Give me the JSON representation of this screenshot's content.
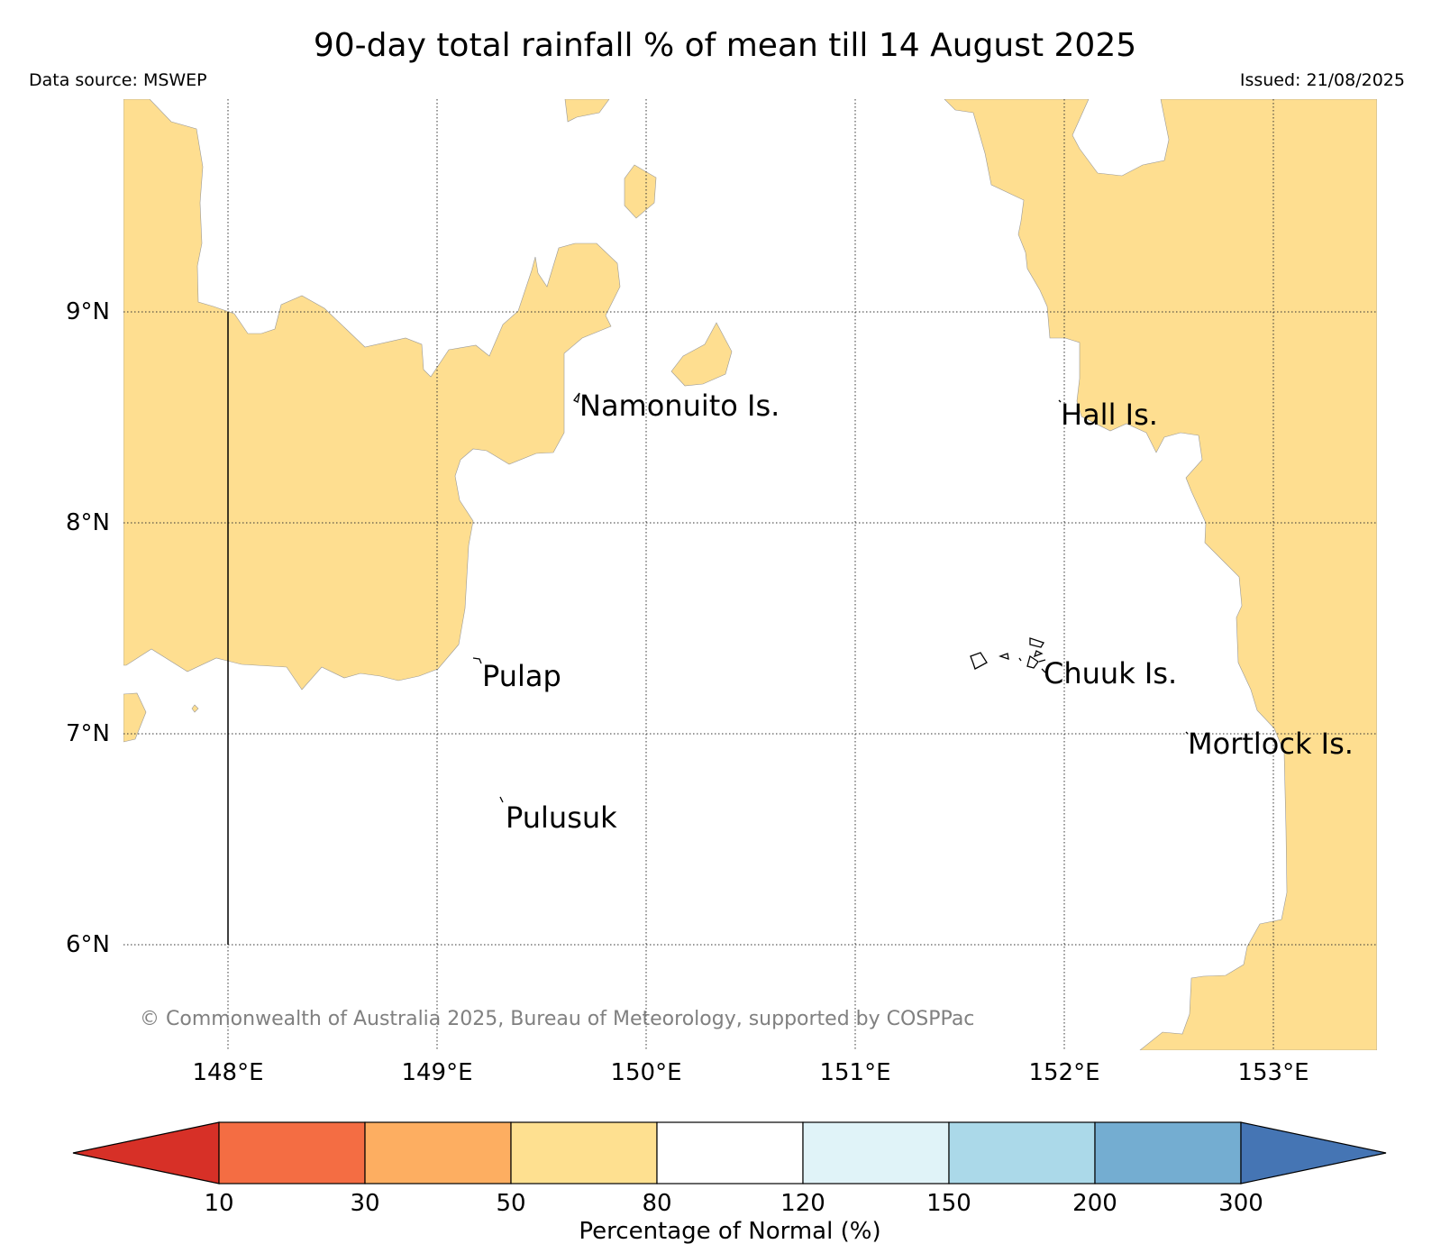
{
  "title": "90-day total rainfall % of mean till 14 August 2025",
  "data_source": "Data source: MSWEP",
  "issued": "Issued: 21/08/2025",
  "copyright": "© Commonwealth of Australia 2025, Bureau of Meteorology, supported by COSPPac",
  "lat_ticks": [
    "9°N",
    "8°N",
    "7°N",
    "6°N"
  ],
  "lon_ticks": [
    "148°E",
    "149°E",
    "150°E",
    "151°E",
    "152°E",
    "153°E"
  ],
  "places": [
    {
      "name": "Namonuito Is."
    },
    {
      "name": "Hall Is."
    },
    {
      "name": "Pulap"
    },
    {
      "name": "Chuuk Is."
    },
    {
      "name": "Mortlock Is."
    },
    {
      "name": "Pulusuk"
    }
  ],
  "colorbar": {
    "label": "Percentage of Normal (%)",
    "ticks": [
      "10",
      "30",
      "50",
      "80",
      "120",
      "150",
      "200",
      "300"
    ],
    "colors": [
      "#d73027",
      "#f46d43",
      "#fdae61",
      "#fee090",
      "#ffffff",
      "#e0f3f8",
      "#abd9e9",
      "#74add1",
      "#4575b4"
    ]
  },
  "colors": {
    "fill_80": "#fede90",
    "fill_50": "#fdae61"
  }
}
